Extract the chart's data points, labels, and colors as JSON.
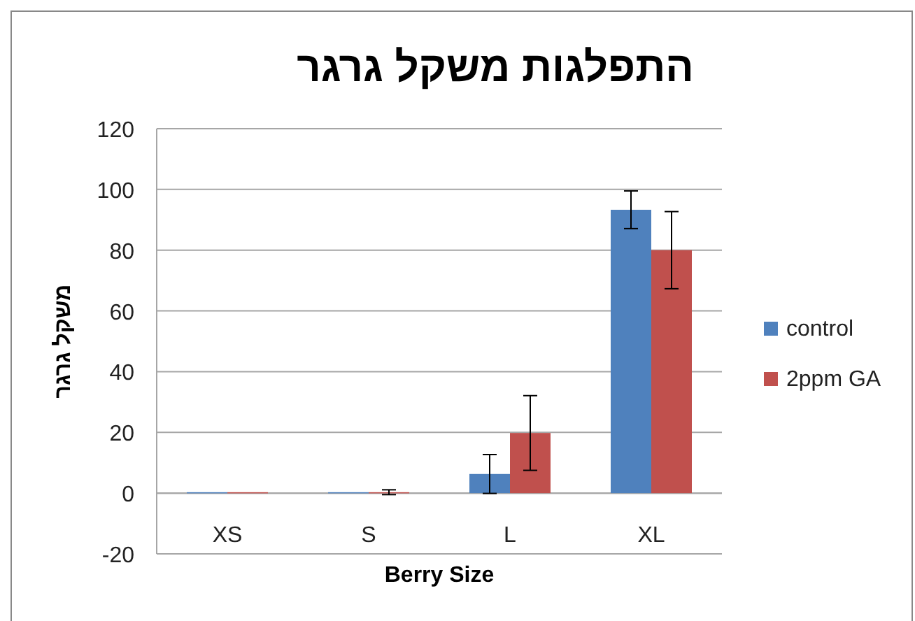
{
  "chart_data": {
    "type": "bar",
    "title": "התפלגות משקל גרגר",
    "xlabel": "Berry Size",
    "ylabel": "משקל גרגר",
    "categories": [
      "XS",
      "S",
      "L",
      "XL"
    ],
    "series": [
      {
        "name": "control",
        "color": "#4f81bd",
        "values": [
          0.3,
          0.3,
          6.3,
          93.3
        ],
        "errors": [
          null,
          null,
          6.4,
          6.2
        ]
      },
      {
        "name": "2ppm GA",
        "color": "#c0504d",
        "values": [
          0.3,
          0.3,
          19.8,
          80
        ],
        "errors": [
          null,
          0.8,
          12.3,
          12.7
        ]
      }
    ],
    "ylim": [
      -20,
      120
    ],
    "yticks": [
      -20,
      0,
      20,
      40,
      60,
      80,
      100,
      120
    ],
    "grid": "y",
    "legend": "right"
  }
}
